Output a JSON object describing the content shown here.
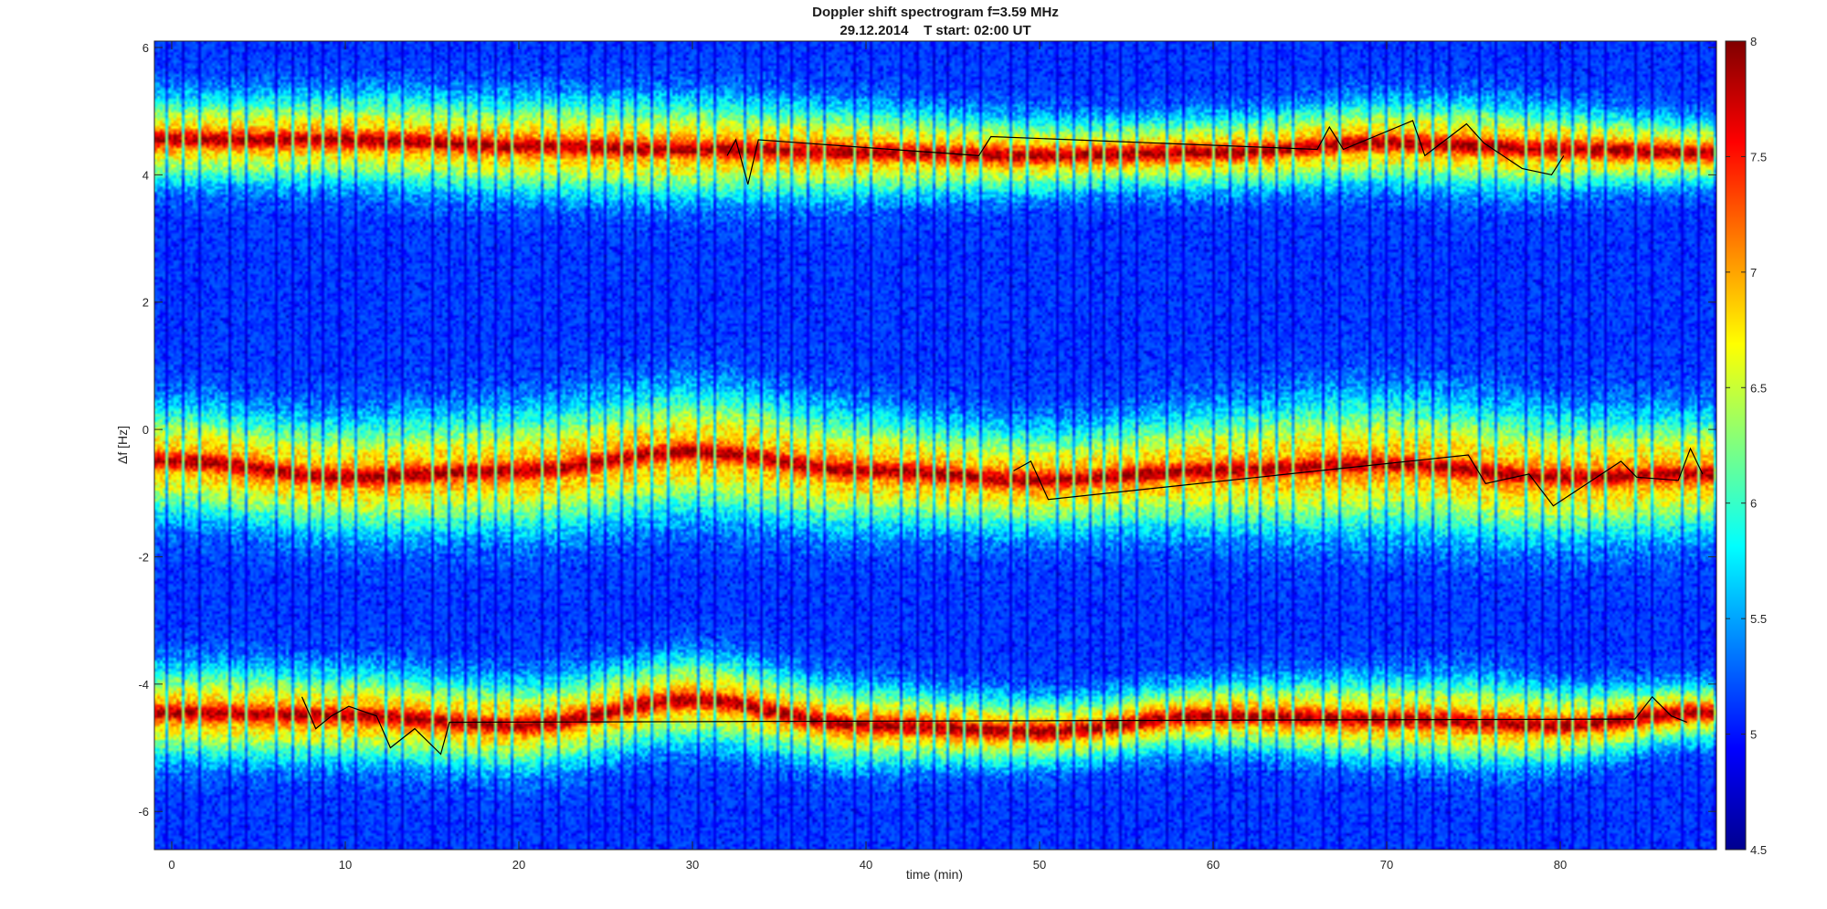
{
  "chart_data": {
    "type": "heatmap",
    "title": "Doppler shift spectrogram f=3.59 MHz",
    "subtitle": "29.12.2014    T start: 02:00 UT",
    "xlabel": "time (min)",
    "ylabel": "Δf [Hz]",
    "xlim": [
      -1,
      89
    ],
    "ylim": [
      -6.6,
      6.1
    ],
    "xticks": [
      0,
      10,
      20,
      30,
      40,
      50,
      60,
      70,
      80
    ],
    "yticks": [
      -6,
      -4,
      -2,
      0,
      2,
      4,
      6
    ],
    "colorbar": {
      "colormap": "jet",
      "clim": [
        4.5,
        8
      ],
      "ticks": [
        4.5,
        5,
        5.5,
        6,
        6.5,
        7,
        7.5,
        8
      ],
      "tick_labels": [
        "4.5",
        "5",
        "5.5",
        "6",
        "6.5",
        "7",
        "7.5",
        "8"
      ]
    },
    "grid": false,
    "bands": [
      {
        "center": [
          [
            0,
            4.55
          ],
          [
            10,
            4.55
          ],
          [
            20,
            4.45
          ],
          [
            30,
            4.4
          ],
          [
            40,
            4.35
          ],
          [
            50,
            4.3
          ],
          [
            60,
            4.35
          ],
          [
            70,
            4.5
          ],
          [
            80,
            4.4
          ],
          [
            88,
            4.35
          ]
        ],
        "halfwidth": [
          [
            0,
            0.8
          ],
          [
            30,
            0.9
          ],
          [
            55,
            0.65
          ],
          [
            75,
            0.8
          ],
          [
            88,
            0.6
          ]
        ]
      },
      {
        "center": [
          [
            0,
            -0.5
          ],
          [
            10,
            -0.75
          ],
          [
            20,
            -0.65
          ],
          [
            30,
            -0.35
          ],
          [
            40,
            -0.65
          ],
          [
            50,
            -0.8
          ],
          [
            60,
            -0.65
          ],
          [
            70,
            -0.55
          ],
          [
            80,
            -0.75
          ],
          [
            88,
            -0.7
          ]
        ],
        "halfwidth": [
          [
            0,
            1.0
          ],
          [
            30,
            1.15
          ],
          [
            50,
            0.95
          ],
          [
            70,
            1.25
          ],
          [
            88,
            1.1
          ]
        ]
      },
      {
        "center": [
          [
            0,
            -4.45
          ],
          [
            10,
            -4.5
          ],
          [
            20,
            -4.65
          ],
          [
            30,
            -4.25
          ],
          [
            40,
            -4.65
          ],
          [
            50,
            -4.75
          ],
          [
            60,
            -4.5
          ],
          [
            70,
            -4.55
          ],
          [
            80,
            -4.65
          ],
          [
            88,
            -4.45
          ]
        ],
        "halfwidth": [
          [
            0,
            0.85
          ],
          [
            30,
            0.8
          ],
          [
            55,
            0.6
          ],
          [
            75,
            0.8
          ],
          [
            88,
            0.55
          ]
        ]
      }
    ],
    "trace_lines": [
      {
        "band": 0,
        "x": [
          32,
          32.5,
          33.2,
          33.8,
          46.5,
          47.2,
          66,
          66.7,
          67.5,
          71.5,
          72.2,
          74.6,
          75.6,
          77.8,
          79.5,
          80.2
        ],
        "y": [
          4.3,
          4.55,
          3.85,
          4.55,
          4.3,
          4.6,
          4.4,
          4.75,
          4.4,
          4.85,
          4.3,
          4.8,
          4.5,
          4.1,
          4.0,
          4.3
        ]
      },
      {
        "band": 1,
        "x": [
          48.5,
          49.5,
          50.5,
          74.7,
          75.7,
          78.2,
          79.6,
          83.5,
          84.4,
          86.8,
          87.5,
          88.2
        ],
        "y": [
          -0.65,
          -0.5,
          -1.1,
          -0.4,
          -0.85,
          -0.7,
          -1.2,
          -0.5,
          -0.75,
          -0.8,
          -0.3,
          -0.7
        ]
      },
      {
        "band": 2,
        "x": [
          7.5,
          8.3,
          9.2,
          10.2,
          11.8,
          12.6,
          14,
          15.5,
          16,
          84.3,
          85.3,
          86.4,
          87.3
        ],
        "y": [
          -4.2,
          -4.7,
          -4.5,
          -4.35,
          -4.5,
          -5.0,
          -4.7,
          -5.1,
          -4.6,
          -4.55,
          -4.2,
          -4.5,
          -4.6
        ]
      }
    ]
  }
}
